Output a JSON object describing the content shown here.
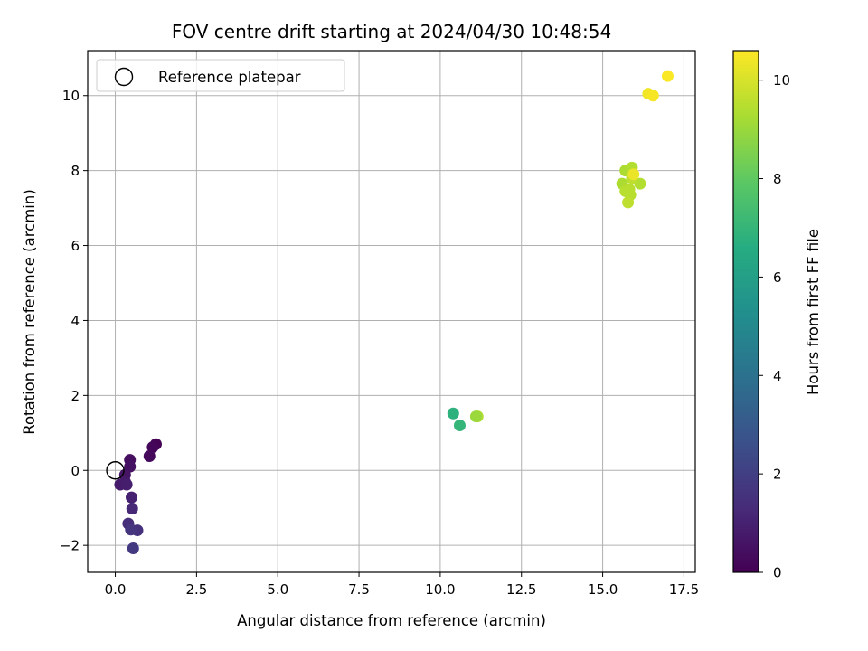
{
  "chart_data": {
    "type": "scatter",
    "title": "FOV centre drift starting at 2024/04/30 10:48:54",
    "xlabel": "Angular distance from reference (arcmin)",
    "ylabel": "Rotation from reference (arcmin)",
    "xlim": [
      -0.85,
      17.85
    ],
    "ylim": [
      -2.72,
      11.2
    ],
    "xticks": [
      0.0,
      2.5,
      5.0,
      7.5,
      10.0,
      12.5,
      15.0,
      17.5
    ],
    "xtick_labels": [
      "0.0",
      "2.5",
      "5.0",
      "7.5",
      "10.0",
      "12.5",
      "15.0",
      "17.5"
    ],
    "yticks": [
      -2,
      0,
      2,
      4,
      6,
      8,
      10
    ],
    "ytick_labels": [
      "−2",
      "0",
      "2",
      "4",
      "6",
      "8",
      "10"
    ],
    "grid": true,
    "legend": {
      "placement": "top-left",
      "entries": [
        "Reference platepar"
      ]
    },
    "reference_point": {
      "x": 0.0,
      "y": 0.0
    },
    "colorbar": {
      "label": "Hours from first FF file",
      "colormap": "viridis",
      "range": [
        0,
        10.6
      ],
      "ticks": [
        0,
        2,
        4,
        6,
        8,
        10
      ],
      "tick_labels": [
        "0",
        "2",
        "4",
        "6",
        "8",
        "10"
      ]
    },
    "points": [
      {
        "x": 1.25,
        "y": 0.7,
        "c": 0.05
      },
      {
        "x": 1.15,
        "y": 0.62,
        "c": 0.15
      },
      {
        "x": 1.05,
        "y": 0.38,
        "c": 0.25
      },
      {
        "x": 0.45,
        "y": 0.28,
        "c": 0.4
      },
      {
        "x": 0.45,
        "y": 0.1,
        "c": 0.5
      },
      {
        "x": 0.3,
        "y": -0.12,
        "c": 0.6
      },
      {
        "x": 0.3,
        "y": -0.3,
        "c": 0.7
      },
      {
        "x": 0.15,
        "y": -0.38,
        "c": 0.8
      },
      {
        "x": 0.35,
        "y": -0.38,
        "c": 0.9
      },
      {
        "x": 0.5,
        "y": -0.72,
        "c": 1.0
      },
      {
        "x": 0.52,
        "y": -1.02,
        "c": 1.2
      },
      {
        "x": 0.4,
        "y": -1.42,
        "c": 1.4
      },
      {
        "x": 0.68,
        "y": -1.6,
        "c": 1.5
      },
      {
        "x": 0.48,
        "y": -1.58,
        "c": 1.6
      },
      {
        "x": 0.55,
        "y": -2.08,
        "c": 1.8
      },
      {
        "x": 10.4,
        "y": 1.52,
        "c": 6.8
      },
      {
        "x": 10.6,
        "y": 1.2,
        "c": 7.0
      },
      {
        "x": 11.15,
        "y": 1.44,
        "c": 9.4
      },
      {
        "x": 11.1,
        "y": 1.44,
        "c": 9.0
      },
      {
        "x": 15.6,
        "y": 7.65,
        "c": 9.3
      },
      {
        "x": 15.7,
        "y": 8.0,
        "c": 9.3
      },
      {
        "x": 15.9,
        "y": 8.08,
        "c": 9.4
      },
      {
        "x": 16.15,
        "y": 7.65,
        "c": 9.4
      },
      {
        "x": 15.7,
        "y": 7.45,
        "c": 9.5
      },
      {
        "x": 15.82,
        "y": 7.5,
        "c": 9.5
      },
      {
        "x": 15.85,
        "y": 7.35,
        "c": 9.5
      },
      {
        "x": 15.78,
        "y": 7.15,
        "c": 9.6
      },
      {
        "x": 15.9,
        "y": 7.8,
        "c": 9.6
      },
      {
        "x": 15.95,
        "y": 7.9,
        "c": 10.3
      },
      {
        "x": 16.4,
        "y": 10.05,
        "c": 10.4
      },
      {
        "x": 16.55,
        "y": 10.0,
        "c": 10.5
      },
      {
        "x": 17.0,
        "y": 10.52,
        "c": 10.55
      }
    ]
  }
}
